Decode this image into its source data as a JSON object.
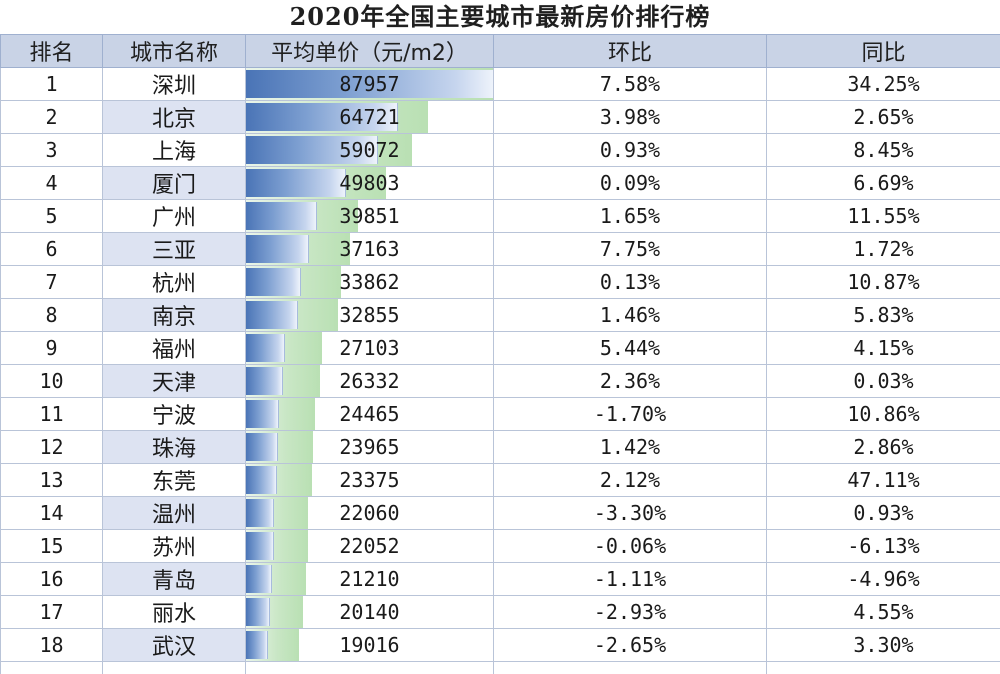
{
  "title": "2020年全国主要城市最新房价排行榜",
  "headers": [
    "排名",
    "城市名称",
    "平均单价（元/m2）",
    "环比",
    "同比"
  ],
  "max_price": 87957,
  "rows": [
    {
      "rank": "1",
      "city": "深圳",
      "price": "87957",
      "mom": "7.58%",
      "yoy": "34.25%"
    },
    {
      "rank": "2",
      "city": "北京",
      "price": "64721",
      "mom": "3.98%",
      "yoy": "2.65%"
    },
    {
      "rank": "3",
      "city": "上海",
      "price": "59072",
      "mom": "0.93%",
      "yoy": "8.45%"
    },
    {
      "rank": "4",
      "city": "厦门",
      "price": "49803",
      "mom": "0.09%",
      "yoy": "6.69%"
    },
    {
      "rank": "5",
      "city": "广州",
      "price": "39851",
      "mom": "1.65%",
      "yoy": "11.55%"
    },
    {
      "rank": "6",
      "city": "三亚",
      "price": "37163",
      "mom": "7.75%",
      "yoy": "1.72%"
    },
    {
      "rank": "7",
      "city": "杭州",
      "price": "33862",
      "mom": "0.13%",
      "yoy": "10.87%"
    },
    {
      "rank": "8",
      "city": "南京",
      "price": "32855",
      "mom": "1.46%",
      "yoy": "5.83%"
    },
    {
      "rank": "9",
      "city": "福州",
      "price": "27103",
      "mom": "5.44%",
      "yoy": "4.15%"
    },
    {
      "rank": "10",
      "city": "天津",
      "price": "26332",
      "mom": "2.36%",
      "yoy": "0.03%"
    },
    {
      "rank": "11",
      "city": "宁波",
      "price": "24465",
      "mom": "-1.70%",
      "yoy": "10.86%"
    },
    {
      "rank": "12",
      "city": "珠海",
      "price": "23965",
      "mom": "1.42%",
      "yoy": "2.86%"
    },
    {
      "rank": "13",
      "city": "东莞",
      "price": "23375",
      "mom": "2.12%",
      "yoy": "47.11%"
    },
    {
      "rank": "14",
      "city": "温州",
      "price": "22060",
      "mom": "-3.30%",
      "yoy": "0.93%"
    },
    {
      "rank": "15",
      "city": "苏州",
      "price": "22052",
      "mom": "-0.06%",
      "yoy": "-6.13%"
    },
    {
      "rank": "16",
      "city": "青岛",
      "price": "21210",
      "mom": "-1.11%",
      "yoy": "-4.96%"
    },
    {
      "rank": "17",
      "city": "丽水",
      "price": "20140",
      "mom": "-2.93%",
      "yoy": "4.55%"
    },
    {
      "rank": "18",
      "city": "武汉",
      "price": "19016",
      "mom": "-2.65%",
      "yoy": "3.30%"
    }
  ],
  "colors": {
    "header_bg": "#c9d3e6",
    "city_alt_bg": "#dde3f2",
    "bar_blue": "#4a74b6",
    "bar_green": "#b9e0b3"
  }
}
